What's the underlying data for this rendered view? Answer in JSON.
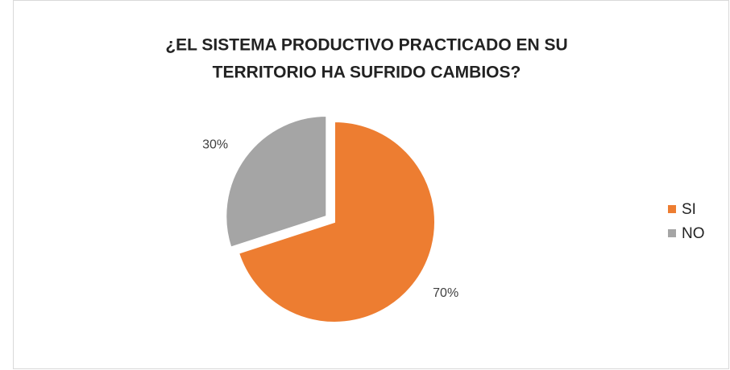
{
  "chart_data": {
    "type": "pie",
    "title": [
      "¿EL SISTEMA PRODUCTIVO PRACTICADO EN SU",
      "TERRITORIO HA SUFRIDO CAMBIOS?"
    ],
    "categories": [
      "SI",
      "NO"
    ],
    "values": [
      70,
      30
    ],
    "value_labels": [
      "70%",
      "30%"
    ],
    "colors": [
      "#ED7D31",
      "#A5A5A5"
    ],
    "exploded": [
      false,
      true
    ],
    "legend": "right"
  }
}
